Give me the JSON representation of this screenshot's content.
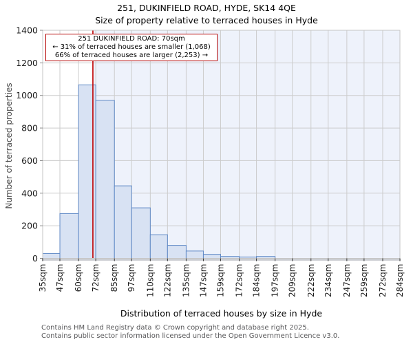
{
  "chart_data": {
    "type": "bar",
    "title": "251, DUKINFIELD ROAD, HYDE, SK14 4QE",
    "subtitle": "Size of property relative to terraced houses in Hyde",
    "xlabel": "Distribution of terraced houses by size in Hyde",
    "ylabel": "Number of terraced properties",
    "ylim": [
      0,
      1400
    ],
    "y_ticks": [
      0,
      200,
      400,
      600,
      800,
      1000,
      1200,
      1400
    ],
    "bin_edges_sqm": [
      35,
      47,
      60,
      72,
      85,
      97,
      110,
      122,
      135,
      147,
      159,
      172,
      184,
      197,
      209,
      222,
      234,
      247,
      259,
      272,
      284
    ],
    "x_tick_labels": [
      "35sqm",
      "47sqm",
      "60sqm",
      "72sqm",
      "85sqm",
      "97sqm",
      "110sqm",
      "122sqm",
      "135sqm",
      "147sqm",
      "159sqm",
      "172sqm",
      "184sqm",
      "197sqm",
      "209sqm",
      "222sqm",
      "234sqm",
      "247sqm",
      "259sqm",
      "272sqm",
      "284sqm"
    ],
    "values": [
      30,
      275,
      1065,
      970,
      445,
      310,
      145,
      80,
      45,
      25,
      12,
      8,
      12,
      0,
      0,
      0,
      0,
      0,
      0,
      0
    ],
    "grid": true,
    "legend": null,
    "marker_line": {
      "x_sqm": 70,
      "color": "#c00000"
    },
    "shaded_region": {
      "from_sqm": 70,
      "to_sqm": 284,
      "color": "#eef2fb"
    },
    "colors": {
      "bar_fill": "#d8e2f3",
      "bar_stroke": "#5e88c5",
      "grid": "#cccccc",
      "border": "#c6c6c6",
      "axis_line": "#c9ccd1",
      "tick": "#333333",
      "tick_label": "#1a1a1a"
    }
  },
  "annotation": {
    "line1": "251 DUKINFIELD ROAD: 70sqm",
    "line2": "← 31% of terraced houses are smaller (1,068)",
    "line3": "66% of terraced houses are larger (2,253) →"
  },
  "footer": {
    "line1": "Contains HM Land Registry data © Crown copyright and database right 2025.",
    "line2": "Contains public sector information licensed under the Open Government Licence v3.0."
  }
}
